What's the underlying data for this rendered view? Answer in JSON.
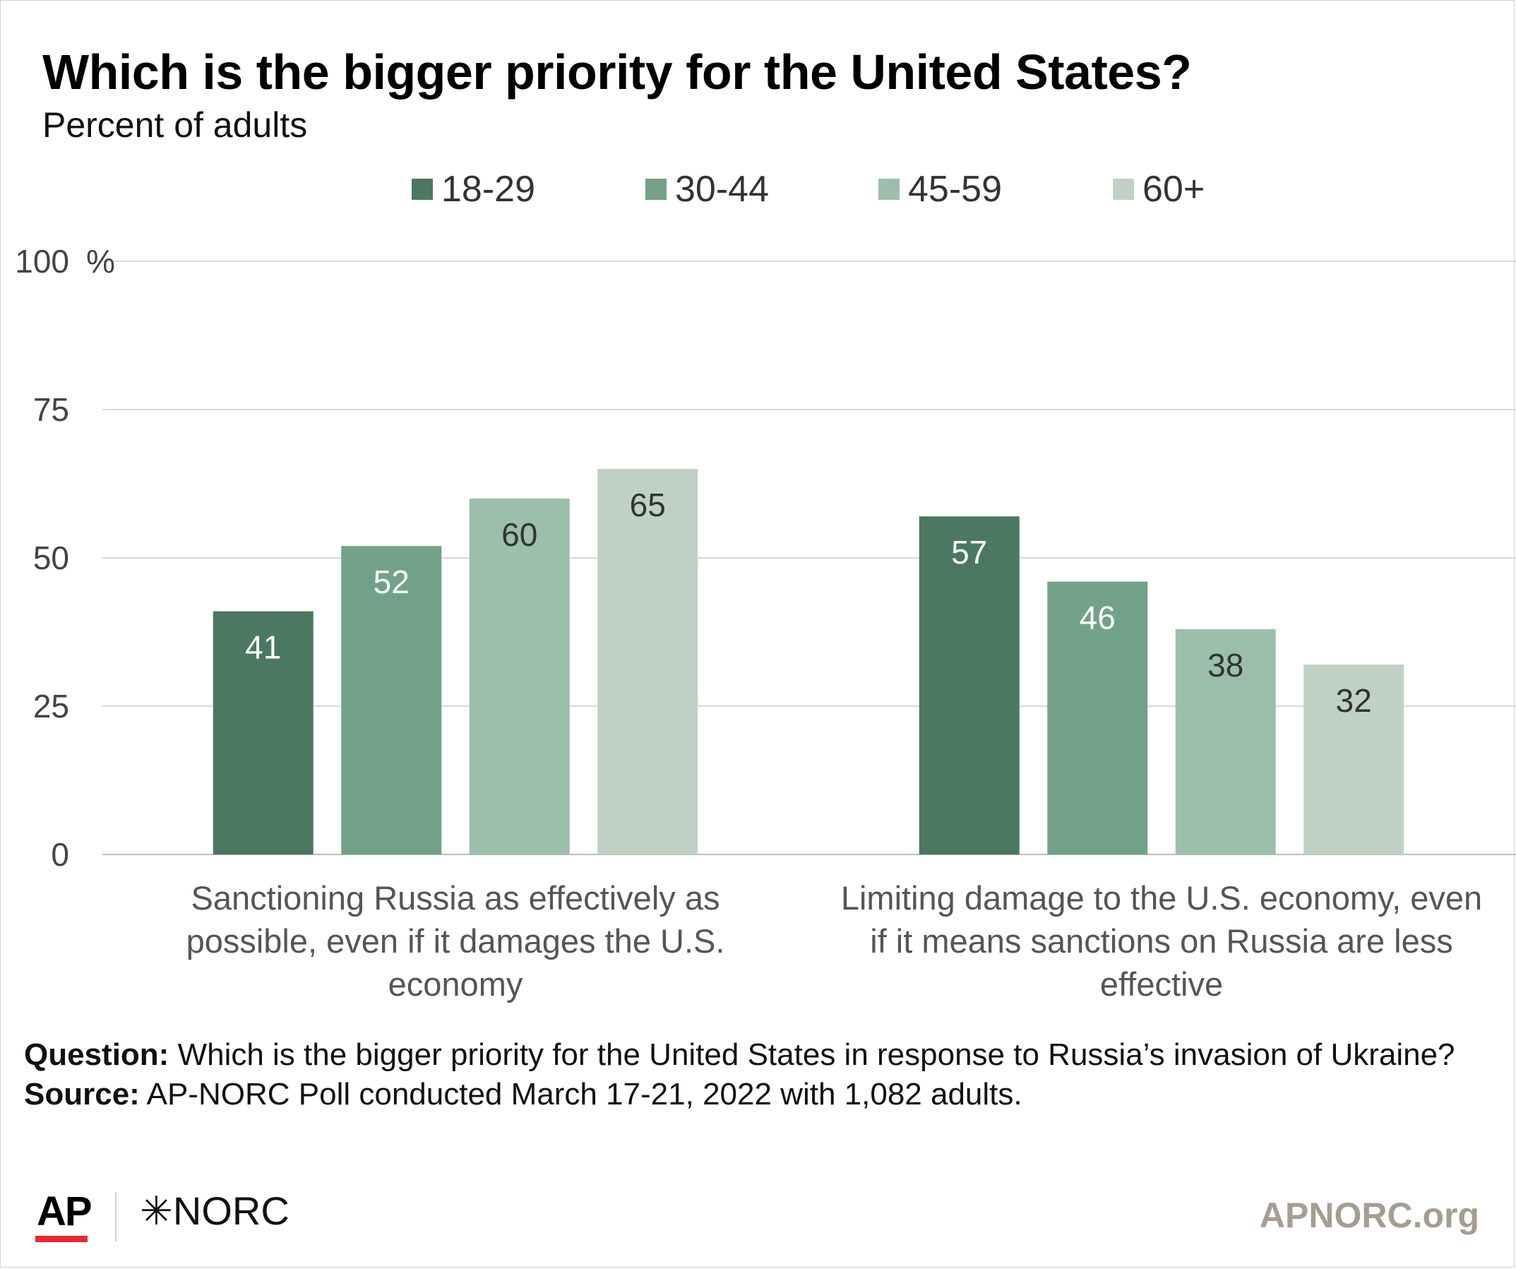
{
  "chart_data": {
    "type": "bar",
    "title": "Which is the bigger priority for the United States?",
    "subtitle": "Percent of adults",
    "categories": [
      "Sanctioning Russia as effectively as possible, even if it damages the U.S. economy",
      "Limiting damage to the U.S. economy, even if it means sanctions on Russia are less effective"
    ],
    "category_lines": [
      [
        "Sanctioning Russia as effectively as",
        "possible, even if it damages the U.S.",
        "economy"
      ],
      [
        "Limiting damage to the U.S. economy, even",
        "if it means sanctions on Russia are less",
        "effective"
      ]
    ],
    "series": [
      {
        "name": "18-29",
        "color": "#4b7860",
        "label_color": "#ffffff",
        "values": [
          41,
          57
        ]
      },
      {
        "name": "30-44",
        "color": "#71a287",
        "label_color": "#ffffff",
        "values": [
          52,
          46
        ]
      },
      {
        "name": "45-59",
        "color": "#9bbfab",
        "label_color": "#333333",
        "values": [
          60,
          38
        ]
      },
      {
        "name": "60+",
        "color": "#bfd1c5",
        "label_color": "#333333",
        "values": [
          65,
          32
        ]
      }
    ],
    "ylim": [
      0,
      100
    ],
    "yticks": [
      0,
      25,
      50,
      75,
      100
    ],
    "ytick_labels": [
      "0",
      "25",
      "50",
      "75",
      "100"
    ],
    "yunit": "%",
    "xlabel": "",
    "ylabel": "",
    "grid": true,
    "legend_position": "top"
  },
  "footer": {
    "question_label": "Question:",
    "question_text": "Which is the bigger priority for the United States in response to Russia’s invasion of Ukraine?",
    "source_label": "Source:",
    "source_text": "AP-NORC Poll conducted March 17-21, 2022 with 1,082 adults."
  },
  "branding": {
    "ap_logo": "AP",
    "norc_logo": "✳NORC",
    "website": "APNORC.org"
  }
}
